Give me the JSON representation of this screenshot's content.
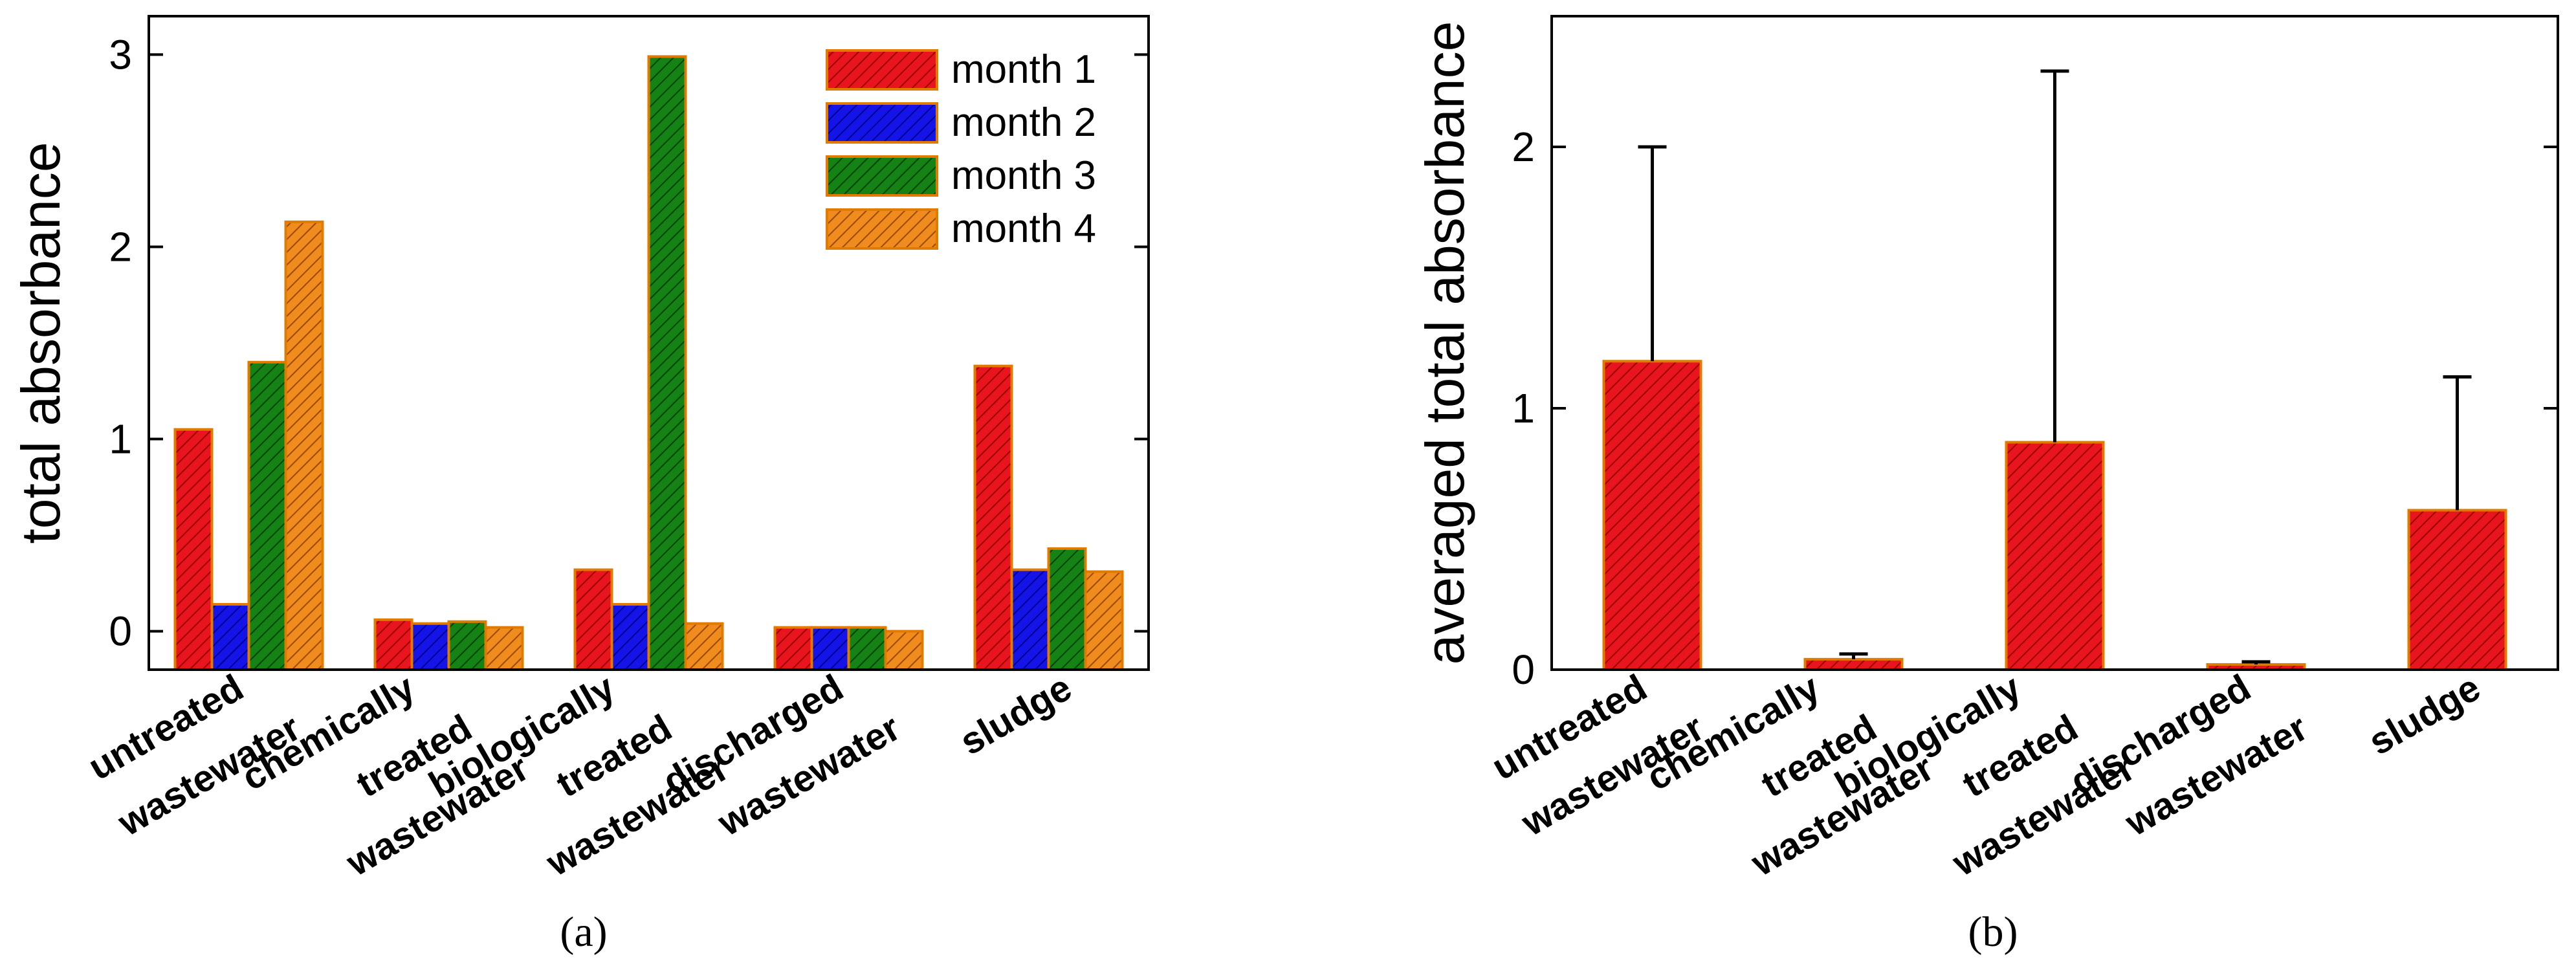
{
  "panels": [
    {
      "label": "(a)"
    },
    {
      "label": "(b)"
    }
  ],
  "colors": {
    "month 1": "#e8141e",
    "month 2": "#1414e8",
    "month 3": "#148214",
    "month 4": "#f08c1e"
  },
  "chart_data": [
    {
      "type": "bar",
      "title": "",
      "xlabel": "",
      "ylabel": "total absorbance",
      "ylim": [
        -0.2,
        3.2
      ],
      "yticks": [
        0,
        1,
        2,
        3
      ],
      "categories": [
        [
          "untreated",
          "wastewater"
        ],
        [
          "chemically",
          "treated",
          "wastewater"
        ],
        [
          "biologically",
          "treated",
          "wastewater"
        ],
        [
          "discharged",
          "wastewater"
        ],
        [
          "sludge"
        ]
      ],
      "legend_position": "top-right",
      "series": [
        {
          "name": "month 1",
          "values": [
            1.05,
            0.06,
            0.32,
            0.02,
            1.38
          ]
        },
        {
          "name": "month 2",
          "values": [
            0.14,
            0.04,
            0.14,
            0.02,
            0.32
          ]
        },
        {
          "name": "month 3",
          "values": [
            1.4,
            0.05,
            2.99,
            0.02,
            0.43
          ]
        },
        {
          "name": "month 4",
          "values": [
            2.13,
            0.02,
            0.04,
            0.0,
            0.31
          ]
        }
      ]
    },
    {
      "type": "bar",
      "title": "",
      "xlabel": "",
      "ylabel": "averaged total absorbance",
      "ylim": [
        0,
        2.5
      ],
      "yticks": [
        0,
        1,
        2
      ],
      "categories": [
        [
          "untreated",
          "wastewater"
        ],
        [
          "chemically",
          "treated",
          "wastewater"
        ],
        [
          "biologically",
          "treated",
          "wastewater"
        ],
        [
          "discharged",
          "wastewater"
        ],
        [
          "sludge"
        ]
      ],
      "values": [
        1.18,
        0.04,
        0.87,
        0.02,
        0.61
      ],
      "errors": [
        0.82,
        0.02,
        1.42,
        0.01,
        0.51
      ]
    }
  ]
}
